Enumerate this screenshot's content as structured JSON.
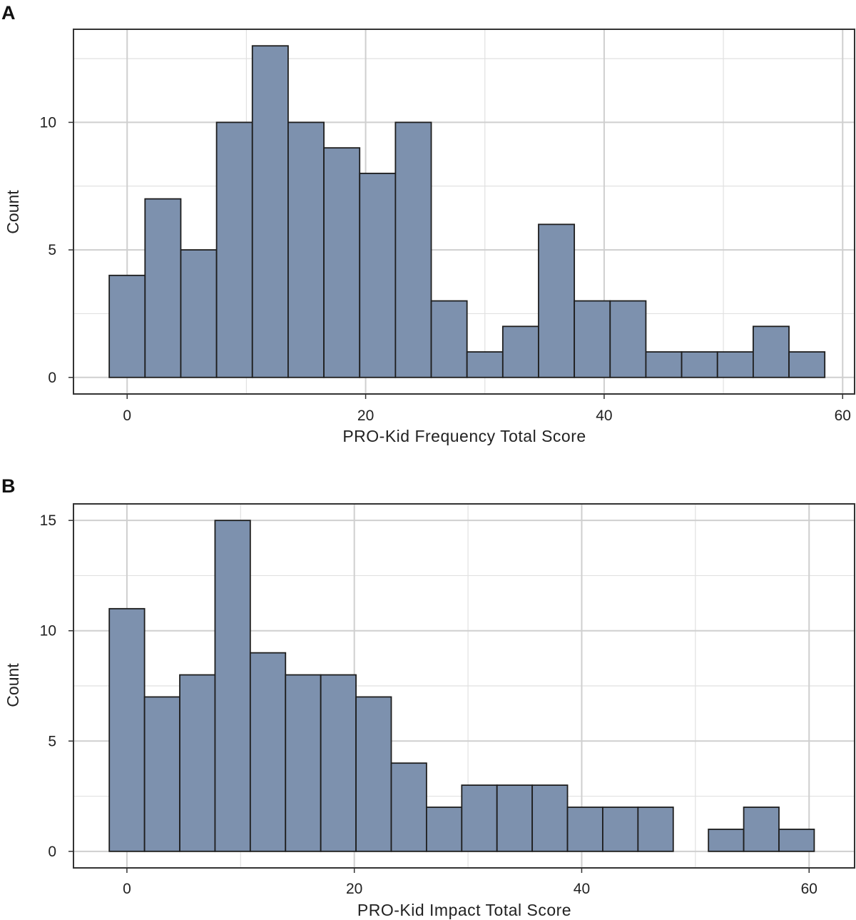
{
  "chart_data": [
    {
      "panel": "A",
      "type": "bar",
      "xlabel": "PRO-Kid Frequency Total Score",
      "ylabel": "Count",
      "xlim": [
        -4.5,
        61
      ],
      "ylim": [
        -0.65,
        13.65
      ],
      "x_ticks": [
        0,
        20,
        40,
        60
      ],
      "y_ticks": [
        0,
        5,
        10
      ],
      "bin_width": 3,
      "bin_starts": [
        -1.5,
        1.5,
        4.5,
        7.5,
        10.5,
        13.5,
        16.5,
        19.5,
        22.5,
        25.5,
        28.5,
        31.5,
        34.5,
        37.5,
        40.5,
        43.5,
        46.5,
        49.5,
        52.5,
        55.5
      ],
      "values": [
        4,
        7,
        5,
        10,
        13,
        10,
        9,
        8,
        10,
        3,
        1,
        2,
        6,
        3,
        3,
        1,
        1,
        1,
        2,
        1
      ],
      "grid": true
    },
    {
      "panel": "B",
      "type": "bar",
      "xlabel": "PRO-Kid Impact Total Score",
      "ylabel": "Count",
      "xlim": [
        -4.7,
        64
      ],
      "ylim": [
        -0.75,
        15.75
      ],
      "x_ticks": [
        0,
        20,
        40,
        60
      ],
      "y_ticks": [
        0,
        5,
        10,
        15
      ],
      "bin_width": 3.1,
      "bin_starts": [
        -1.55,
        1.55,
        4.65,
        7.75,
        10.85,
        13.95,
        17.05,
        20.15,
        23.25,
        26.35,
        29.45,
        32.55,
        35.65,
        38.75,
        41.85,
        44.95,
        48.05,
        51.15,
        54.25,
        57.35
      ],
      "values": [
        11,
        7,
        8,
        15,
        9,
        8,
        8,
        7,
        4,
        2,
        3,
        3,
        3,
        2,
        2,
        2,
        0,
        1,
        2,
        1
      ],
      "grid": true
    }
  ]
}
